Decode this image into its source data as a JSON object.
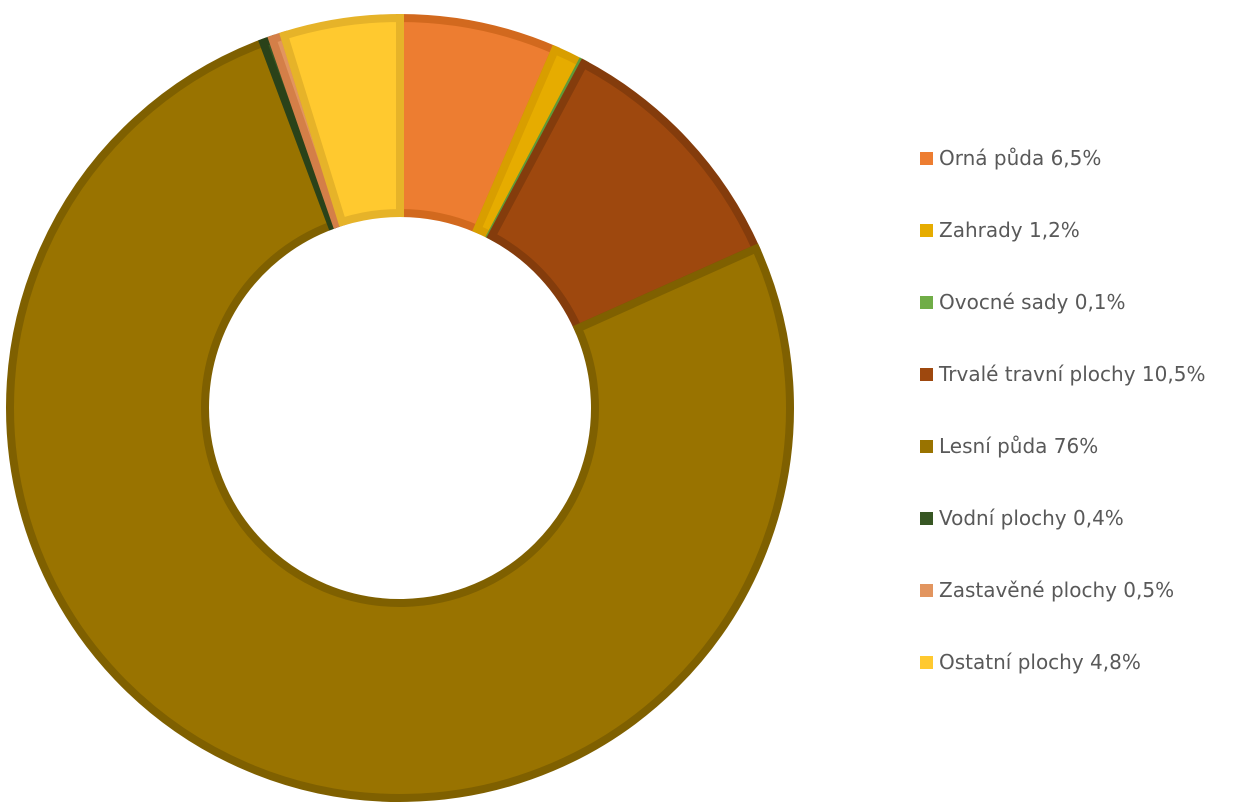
{
  "chart_data": {
    "type": "pie",
    "variant": "doughnut",
    "legend_position": "right",
    "series": [
      {
        "label": "Orná půda 6,5%",
        "value": 6.5,
        "color": "#ED7D31",
        "border": "#D2691E"
      },
      {
        "label": "Zahrady 1,2%",
        "value": 1.2,
        "color": "#E6AC00",
        "border": "#D89E00"
      },
      {
        "label": "Ovocné sady 0,1%",
        "value": 0.1,
        "color": "#70AD47",
        "border": "#5E9A3A"
      },
      {
        "label": "Trvalé travní plochy 10,5%",
        "value": 10.5,
        "color": "#9E480E",
        "border": "#843C0C"
      },
      {
        "label": "Lesní půda 76%",
        "value": 76,
        "color": "#997300",
        "border": "#7F6000"
      },
      {
        "label": "Vodní plochy 0,4%",
        "value": 0.4,
        "color": "#375623",
        "border": "#2A4219"
      },
      {
        "label": "Zastavěné plochy 0,5%",
        "value": 0.5,
        "color": "#E2955F",
        "border": "#D47F48"
      },
      {
        "label": "Ostatní plochy 4,8%",
        "value": 4.8,
        "color": "#FFC92F",
        "border": "#E6B329"
      }
    ]
  }
}
